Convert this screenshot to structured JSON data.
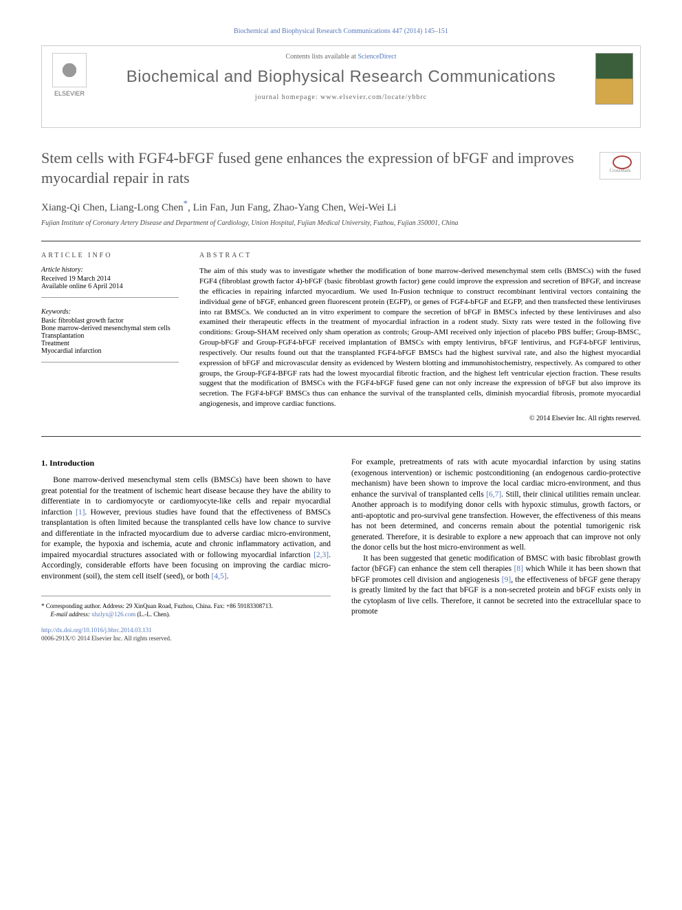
{
  "header": {
    "citation": "Biochemical and Biophysical Research Communications 447 (2014) 145–151",
    "contents_prefix": "Contents lists available at ",
    "contents_link": "ScienceDirect",
    "journal_name": "Biochemical and Biophysical Research Communications",
    "homepage_prefix": "journal homepage: ",
    "homepage_url": "www.elsevier.com/locate/ybbrc",
    "elsevier": "ELSEVIER"
  },
  "crossmark": "CrossMark",
  "article": {
    "title": "Stem cells with FGF4-bFGF fused gene enhances the expression of bFGF and improves myocardial repair in rats",
    "authors": "Xiang-Qi Chen, Liang-Long Chen",
    "authors_rest": ", Lin Fan, Jun Fang, Zhao-Yang Chen, Wei-Wei Li",
    "corr_mark": "*",
    "affiliation": "Fujian Institute of Coronary Artery Disease and Department of Cardiology, Union Hospital, Fujian Medical University, Fuzhou, Fujian 350001, China"
  },
  "info": {
    "heading": "ARTICLE INFO",
    "history_label": "Article history:",
    "received": "Received 19 March 2014",
    "available": "Available online 6 April 2014",
    "keywords_label": "Keywords:",
    "keywords": [
      "Basic fibroblast growth factor",
      "Bone marrow-derived mesenchymal stem cells",
      "Transplantation",
      "Treatment",
      "Myocardial infarction"
    ]
  },
  "abstract": {
    "heading": "ABSTRACT",
    "text": "The aim of this study was to investigate whether the modification of bone marrow-derived mesenchymal stem cells (BMSCs) with the fused FGF4 (fibroblast growth factor 4)-bFGF (basic fibroblast growth factor) gene could improve the expression and secretion of BFGF, and increase the efficacies in repairing infarcted myocardium. We used In-Fusion technique to construct recombinant lentiviral vectors containing the individual gene of bFGF, enhanced green fluorescent protein (EGFP), or genes of FGF4-bFGF and EGFP, and then transfected these lentiviruses into rat BMSCs. We conducted an in vitro experiment to compare the secretion of bFGF in BMSCs infected by these lentiviruses and also examined their therapeutic effects in the treatment of myocardial infraction in a rodent study. Sixty rats were tested in the following five conditions: Group-SHAM received only sham operation as controls; Group-AMI received only injection of placebo PBS buffer; Group-BMSC, Group-bFGF and Group-FGF4-bFGF received implantation of BMSCs with empty lentivirus, bFGF lentivirus, and FGF4-bFGF lentivirus, respectively. Our results found out that the transplanted FGF4-bFGF BMSCs had the highest survival rate, and also the highest myocardial expression of bFGF and microvascular density as evidenced by Western blotting and immunohistochemistry, respectively. As compared to other groups, the Group-FGF4-BFGF rats had the lowest myocardial fibrotic fraction, and the highest left ventricular ejection fraction. These results suggest that the modification of BMSCs with the FGF4-bFGF fused gene can not only increase the expression of bFGF but also improve its secretion. The FGF4-bFGF BMSCs thus can enhance the survival of the transplanted cells, diminish myocardial fibrosis, promote myocardial angiogenesis, and improve cardiac functions.",
    "copyright": "© 2014 Elsevier Inc. All rights reserved."
  },
  "body": {
    "intro_heading": "1. Introduction",
    "col1_p1a": "Bone marrow-derived mesenchymal stem cells (BMSCs) have been shown to have great potential for the treatment of ischemic heart disease because they have the ability to differentiate in to cardiomyocyte or cardiomyocyte-like cells and repair myocardial infarction ",
    "col1_ref1": "[1]",
    "col1_p1b": ". However, previous studies have found that the effectiveness of BMSCs transplantation is often limited because the transplanted cells have low chance to survive and differentiate in the infracted myocardium due to adverse cardiac micro-environment, for example, the hypoxia and ischemia, acute and chronic inflammatory activation, and impaired myocardial structures associated with or following myocardial infarction ",
    "col1_ref2": "[2,3]",
    "col1_p1c": ". Accordingly, considerable efforts have been focusing on improving the cardiac micro-environment (soil), the stem cell itself (seed), or both ",
    "col1_ref3": "[4,5]",
    "col1_p1d": ".",
    "col2_p1a": "For example, pretreatments of rats with acute myocardial infarction by using statins (exogenous intervention) or ischemic postconditioning (an endogenous cardio-protective mechanism) have been shown to improve the local cardiac micro-environment, and thus enhance the survival of transplanted cells ",
    "col2_ref1": "[6,7]",
    "col2_p1b": ". Still, their clinical utilities remain unclear. Another approach is to modifying donor cells with hypoxic stimulus, growth factors, or anti-apoptotic and pro-survival gene transfection. However, the effectiveness of this means has not been determined, and concerns remain about the potential tumorigenic risk generated. Therefore, it is desirable to explore a new approach that can improve not only the donor cells but the host micro-environment as well.",
    "col2_p2a": "It has been suggested that genetic modification of BMSC with basic fibroblast growth factor (bFGF) can enhance the stem cell therapies ",
    "col2_ref2": "[8]",
    "col2_p2b": " which While it has been shown that bFGF promotes cell division and angiogenesis ",
    "col2_ref3": "[9]",
    "col2_p2c": ", the effectiveness of bFGF gene therapy is greatly limited by the fact that bFGF is a non-secreted protein and bFGF exists only in the cytoplasm of live cells. Therefore, it cannot be secreted into the extracellular space to promote"
  },
  "footnote": {
    "corr_label": "* Corresponding author. Address: 29 XinQuan Road, Fuzhou, China. Fax: +86 59183308713.",
    "email_label": "E-mail address: ",
    "email": "xhzlyx@126.com",
    "email_suffix": " (L.-L. Chen)."
  },
  "footer": {
    "doi": "http://dx.doi.org/10.1016/j.bbrc.2014.03.131",
    "issn_copyright": "0006-291X/© 2014 Elsevier Inc. All rights reserved."
  },
  "colors": {
    "link": "#5577bb",
    "heading_gray": "#555555",
    "text": "#000000"
  }
}
